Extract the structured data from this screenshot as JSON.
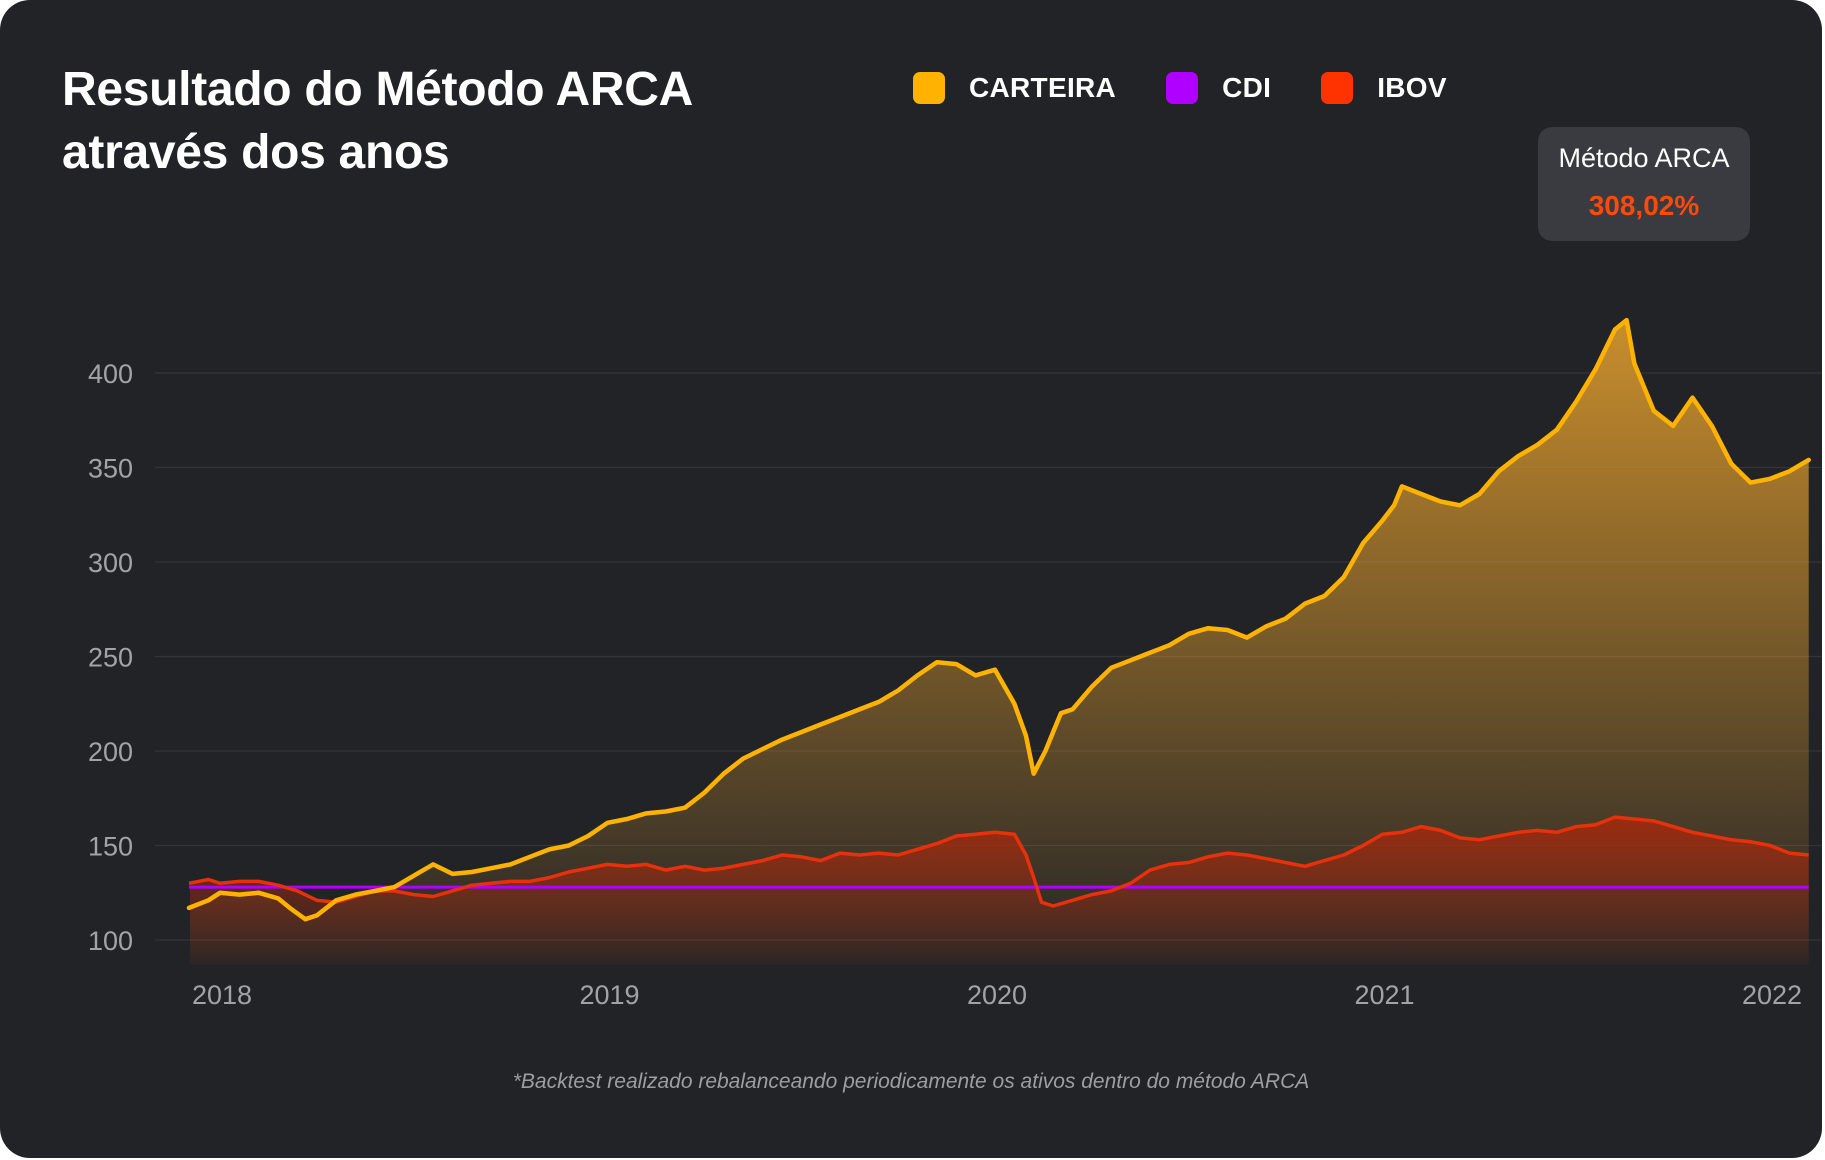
{
  "title": "Resultado do Método ARCA através dos anos",
  "legend": [
    {
      "label": "CARTEIRA",
      "color": "#ffb300"
    },
    {
      "label": "CDI",
      "color": "#b000ff"
    },
    {
      "label": "IBOV",
      "color": "#ff3300"
    }
  ],
  "tooltip": {
    "title": "Método ARCA",
    "value": "308,02%"
  },
  "footnote": "*Backtest realizado rebalanceando periodicamente os ativos dentro do método ARCA",
  "chart_data": {
    "type": "area",
    "title": "Resultado do Método ARCA através dos anos",
    "xlabel": "",
    "ylabel": "",
    "xlim": [
      2017.92,
      2022.1
    ],
    "ylim": [
      95,
      440
    ],
    "y_ticks": [
      100,
      150,
      200,
      250,
      300,
      350,
      400
    ],
    "x_ticks": [
      "2018",
      "2019",
      "2020",
      "2021",
      "2022"
    ],
    "x_tick_values": [
      2018,
      2019,
      2020,
      2021,
      2022
    ],
    "grid": true,
    "series": [
      {
        "name": "CARTEIRA",
        "color": "#ffb300",
        "x": [
          2017.92,
          2017.97,
          2018.0,
          2018.05,
          2018.1,
          2018.15,
          2018.18,
          2018.22,
          2018.25,
          2018.3,
          2018.35,
          2018.4,
          2018.45,
          2018.5,
          2018.55,
          2018.6,
          2018.65,
          2018.7,
          2018.75,
          2018.8,
          2018.85,
          2018.9,
          2018.95,
          2019.0,
          2019.05,
          2019.1,
          2019.15,
          2019.2,
          2019.25,
          2019.3,
          2019.35,
          2019.4,
          2019.45,
          2019.5,
          2019.55,
          2019.6,
          2019.65,
          2019.7,
          2019.75,
          2019.8,
          2019.85,
          2019.9,
          2019.95,
          2020.0,
          2020.05,
          2020.08,
          2020.1,
          2020.13,
          2020.15,
          2020.17,
          2020.2,
          2020.25,
          2020.3,
          2020.35,
          2020.4,
          2020.45,
          2020.5,
          2020.55,
          2020.6,
          2020.65,
          2020.7,
          2020.75,
          2020.8,
          2020.85,
          2020.9,
          2020.95,
          2021.0,
          2021.03,
          2021.05,
          2021.1,
          2021.15,
          2021.2,
          2021.25,
          2021.3,
          2021.35,
          2021.4,
          2021.45,
          2021.5,
          2021.55,
          2021.6,
          2021.63,
          2021.65,
          2021.7,
          2021.75,
          2021.8,
          2021.85,
          2021.9,
          2021.95,
          2022.0,
          2022.05,
          2022.1
        ],
        "values": [
          117,
          121,
          125,
          124,
          125,
          122,
          117,
          111,
          113,
          121,
          124,
          126,
          128,
          134,
          140,
          135,
          136,
          138,
          140,
          144,
          148,
          150,
          155,
          162,
          164,
          167,
          168,
          170,
          178,
          188,
          196,
          201,
          206,
          210,
          214,
          218,
          222,
          226,
          232,
          240,
          247,
          246,
          240,
          243,
          225,
          208,
          188,
          200,
          210,
          220,
          222,
          234,
          244,
          248,
          252,
          256,
          262,
          265,
          264,
          260,
          266,
          270,
          278,
          282,
          292,
          310,
          322,
          330,
          340,
          336,
          332,
          330,
          336,
          348,
          356,
          362,
          370,
          385,
          402,
          423,
          428,
          405,
          380,
          372,
          387,
          372,
          352,
          342,
          344,
          348,
          354
        ]
      },
      {
        "name": "CDI",
        "color": "#b000ff",
        "x": [
          2017.92,
          2022.1
        ],
        "values": [
          128,
          128
        ]
      },
      {
        "name": "IBOV",
        "color": "#ff3300",
        "x": [
          2017.92,
          2017.97,
          2018.0,
          2018.05,
          2018.1,
          2018.15,
          2018.2,
          2018.25,
          2018.3,
          2018.35,
          2018.4,
          2018.45,
          2018.5,
          2018.55,
          2018.6,
          2018.65,
          2018.7,
          2018.75,
          2018.8,
          2018.85,
          2018.9,
          2018.95,
          2019.0,
          2019.05,
          2019.1,
          2019.15,
          2019.2,
          2019.25,
          2019.3,
          2019.35,
          2019.4,
          2019.45,
          2019.5,
          2019.55,
          2019.6,
          2019.65,
          2019.7,
          2019.75,
          2019.8,
          2019.85,
          2019.9,
          2019.95,
          2020.0,
          2020.05,
          2020.08,
          2020.1,
          2020.12,
          2020.15,
          2020.2,
          2020.25,
          2020.3,
          2020.35,
          2020.4,
          2020.45,
          2020.5,
          2020.55,
          2020.6,
          2020.65,
          2020.7,
          2020.75,
          2020.8,
          2020.85,
          2020.9,
          2020.95,
          2021.0,
          2021.05,
          2021.1,
          2021.15,
          2021.2,
          2021.25,
          2021.3,
          2021.35,
          2021.4,
          2021.45,
          2021.5,
          2021.55,
          2021.6,
          2021.65,
          2021.7,
          2021.75,
          2021.8,
          2021.85,
          2021.9,
          2021.95,
          2022.0,
          2022.05,
          2022.1
        ],
        "values": [
          130,
          132,
          130,
          131,
          131,
          129,
          126,
          121,
          120,
          123,
          126,
          126,
          124,
          123,
          126,
          129,
          130,
          131,
          131,
          133,
          136,
          138,
          140,
          139,
          140,
          137,
          139,
          137,
          138,
          140,
          142,
          145,
          144,
          142,
          146,
          145,
          146,
          145,
          148,
          151,
          155,
          156,
          157,
          156,
          145,
          133,
          120,
          118,
          121,
          124,
          126,
          130,
          137,
          140,
          141,
          144,
          146,
          145,
          143,
          141,
          139,
          142,
          145,
          150,
          156,
          157,
          160,
          158,
          154,
          153,
          155,
          157,
          158,
          157,
          160,
          161,
          165,
          164,
          163,
          160,
          157,
          155,
          153,
          152,
          150,
          146,
          145
        ]
      }
    ]
  }
}
